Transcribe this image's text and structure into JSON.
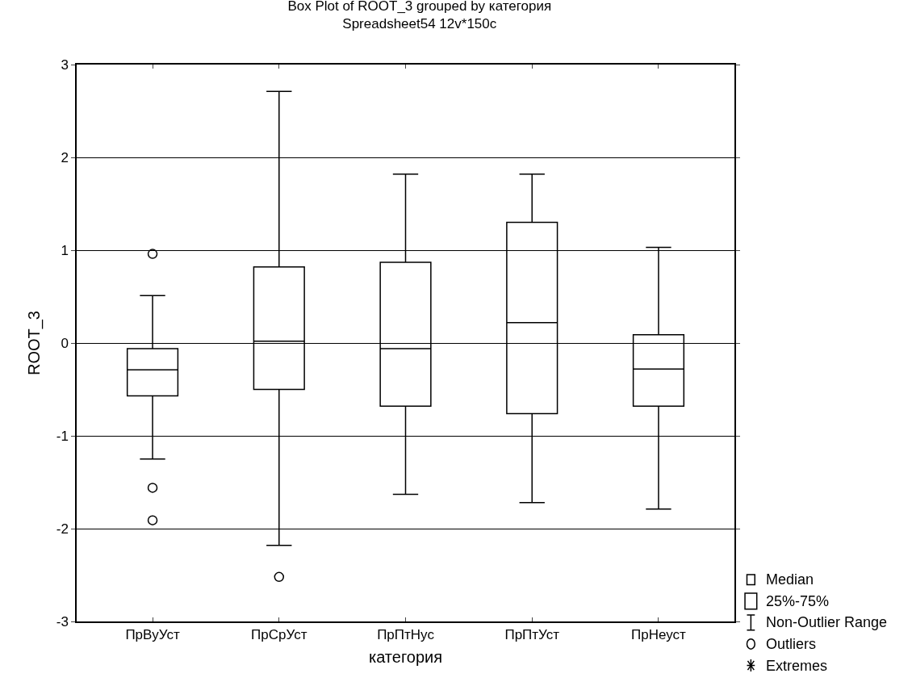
{
  "chart_data": {
    "type": "box",
    "title": "Box Plot of ROOT_3 grouped by категория",
    "subtitle": "Spreadsheet54 12v*150c",
    "xlabel": "категория",
    "ylabel": "ROOT_3",
    "categories": [
      "ПрВуУст",
      "ПрСрУст",
      "ПрПтНус",
      "ПрПтУст",
      "ПрНеуст"
    ],
    "boxes": [
      {
        "low": -1.25,
        "q1": -0.57,
        "median": -0.29,
        "q3": -0.06,
        "high": 0.51,
        "outliers": [
          0.96,
          -1.56,
          -1.91
        ]
      },
      {
        "low": -2.18,
        "q1": -0.5,
        "median": 0.02,
        "q3": 0.82,
        "high": 2.71,
        "outliers": [
          -2.52
        ]
      },
      {
        "low": -1.63,
        "q1": -0.68,
        "median": -0.06,
        "q3": 0.87,
        "high": 1.82
      },
      {
        "low": -1.72,
        "q1": -0.76,
        "median": 0.22,
        "q3": 1.3,
        "high": 1.82
      },
      {
        "low": -1.79,
        "q1": -0.68,
        "median": -0.28,
        "q3": 0.09,
        "high": 1.03
      }
    ],
    "color": "#000000",
    "ylim": [
      -3,
      3
    ],
    "yticks": [
      -3,
      -2,
      -1,
      0,
      1,
      2,
      3
    ],
    "grid": "y",
    "annotations": [
      "Median",
      "25%-75%",
      "Non-Outlier Range",
      "Outliers",
      "Extremes"
    ]
  }
}
